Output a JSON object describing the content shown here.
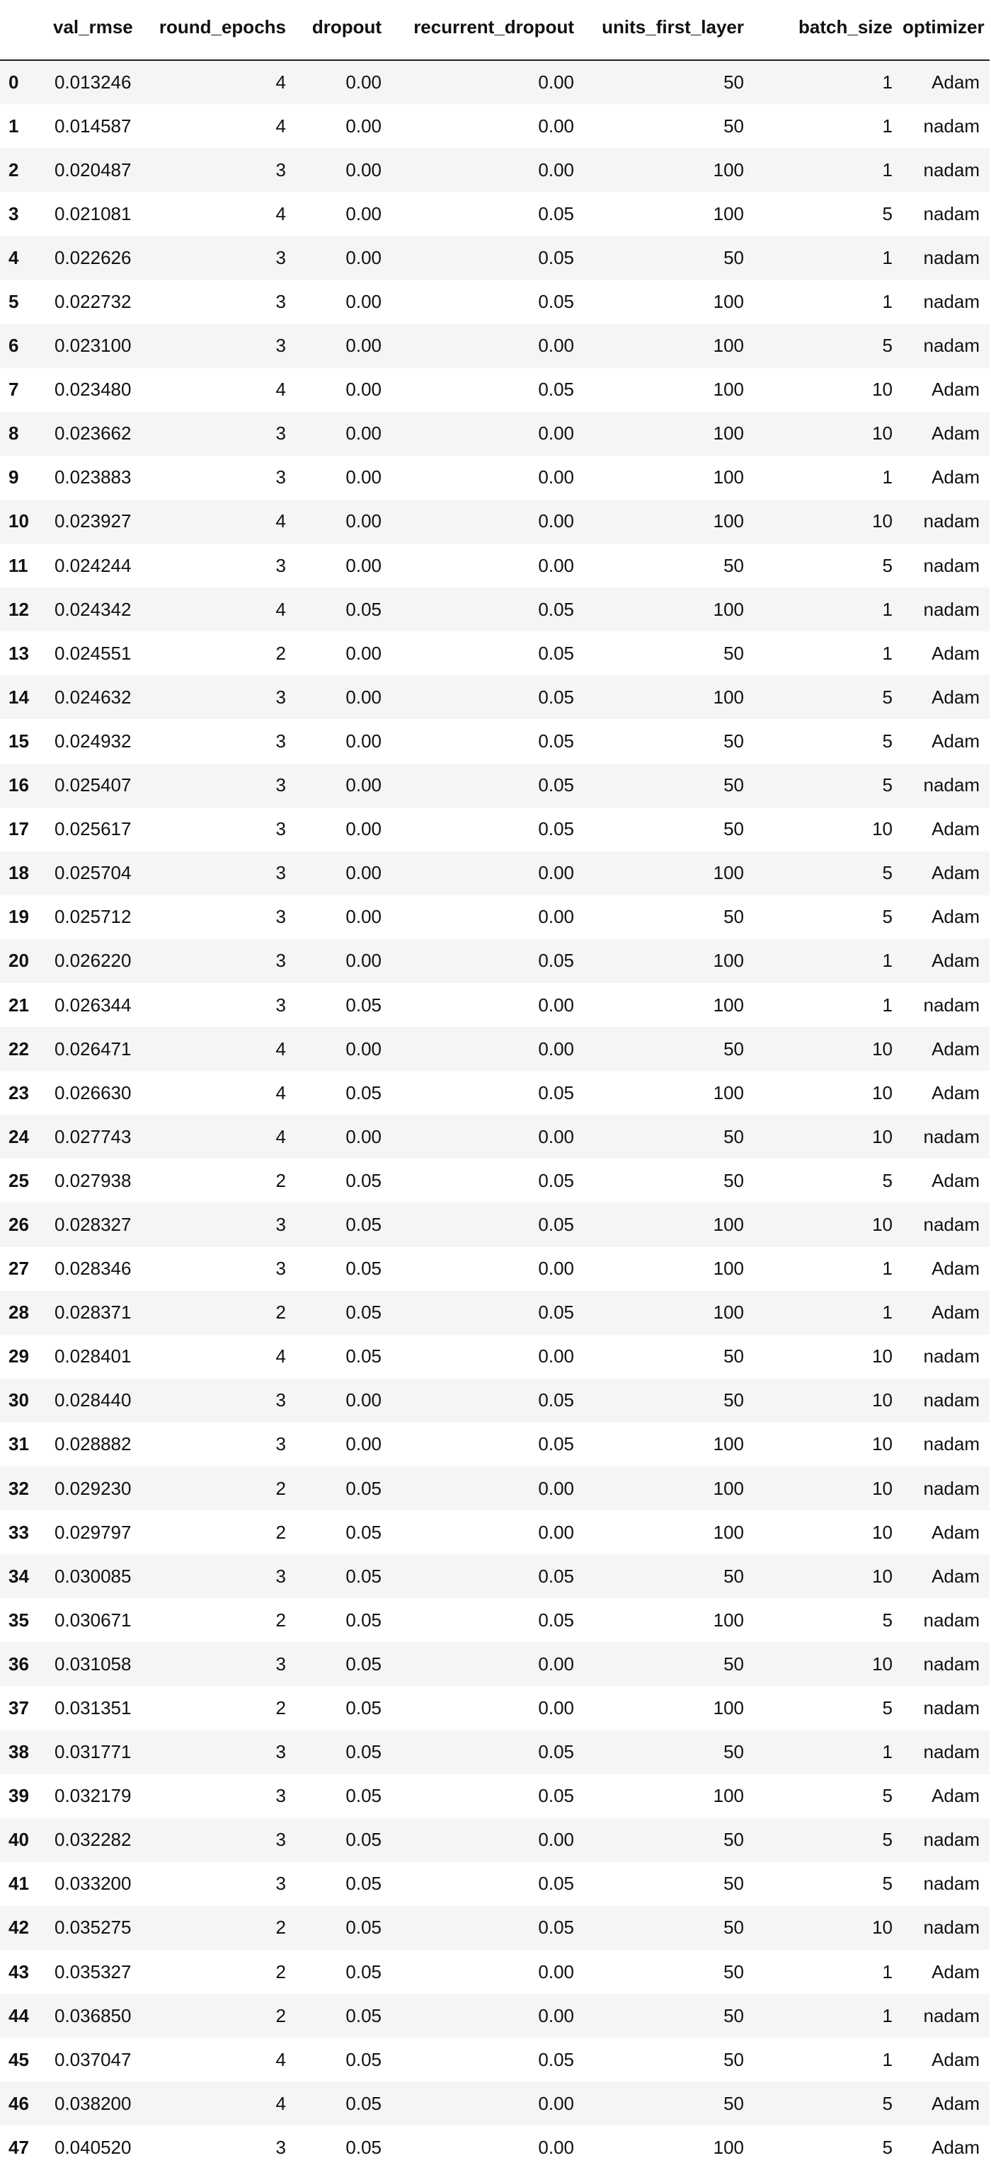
{
  "table": {
    "columns": [
      "",
      "val_rmse",
      "round_epochs",
      "dropout",
      "recurrent_dropout",
      "units_first_layer",
      "batch_size",
      "optimizer"
    ],
    "rows": [
      [
        "0",
        "0.013246",
        "4",
        "0.00",
        "0.00",
        "50",
        "1",
        "Adam"
      ],
      [
        "1",
        "0.014587",
        "4",
        "0.00",
        "0.00",
        "50",
        "1",
        "nadam"
      ],
      [
        "2",
        "0.020487",
        "3",
        "0.00",
        "0.00",
        "100",
        "1",
        "nadam"
      ],
      [
        "3",
        "0.021081",
        "4",
        "0.00",
        "0.05",
        "100",
        "5",
        "nadam"
      ],
      [
        "4",
        "0.022626",
        "3",
        "0.00",
        "0.05",
        "50",
        "1",
        "nadam"
      ],
      [
        "5",
        "0.022732",
        "3",
        "0.00",
        "0.05",
        "100",
        "1",
        "nadam"
      ],
      [
        "6",
        "0.023100",
        "3",
        "0.00",
        "0.00",
        "100",
        "5",
        "nadam"
      ],
      [
        "7",
        "0.023480",
        "4",
        "0.00",
        "0.05",
        "100",
        "10",
        "Adam"
      ],
      [
        "8",
        "0.023662",
        "3",
        "0.00",
        "0.00",
        "100",
        "10",
        "Adam"
      ],
      [
        "9",
        "0.023883",
        "3",
        "0.00",
        "0.00",
        "100",
        "1",
        "Adam"
      ],
      [
        "10",
        "0.023927",
        "4",
        "0.00",
        "0.00",
        "100",
        "10",
        "nadam"
      ],
      [
        "11",
        "0.024244",
        "3",
        "0.00",
        "0.00",
        "50",
        "5",
        "nadam"
      ],
      [
        "12",
        "0.024342",
        "4",
        "0.05",
        "0.05",
        "100",
        "1",
        "nadam"
      ],
      [
        "13",
        "0.024551",
        "2",
        "0.00",
        "0.05",
        "50",
        "1",
        "Adam"
      ],
      [
        "14",
        "0.024632",
        "3",
        "0.00",
        "0.05",
        "100",
        "5",
        "Adam"
      ],
      [
        "15",
        "0.024932",
        "3",
        "0.00",
        "0.05",
        "50",
        "5",
        "Adam"
      ],
      [
        "16",
        "0.025407",
        "3",
        "0.00",
        "0.05",
        "50",
        "5",
        "nadam"
      ],
      [
        "17",
        "0.025617",
        "3",
        "0.00",
        "0.05",
        "50",
        "10",
        "Adam"
      ],
      [
        "18",
        "0.025704",
        "3",
        "0.00",
        "0.00",
        "100",
        "5",
        "Adam"
      ],
      [
        "19",
        "0.025712",
        "3",
        "0.00",
        "0.00",
        "50",
        "5",
        "Adam"
      ],
      [
        "20",
        "0.026220",
        "3",
        "0.00",
        "0.05",
        "100",
        "1",
        "Adam"
      ],
      [
        "21",
        "0.026344",
        "3",
        "0.05",
        "0.00",
        "100",
        "1",
        "nadam"
      ],
      [
        "22",
        "0.026471",
        "4",
        "0.00",
        "0.00",
        "50",
        "10",
        "Adam"
      ],
      [
        "23",
        "0.026630",
        "4",
        "0.05",
        "0.05",
        "100",
        "10",
        "Adam"
      ],
      [
        "24",
        "0.027743",
        "4",
        "0.00",
        "0.00",
        "50",
        "10",
        "nadam"
      ],
      [
        "25",
        "0.027938",
        "2",
        "0.05",
        "0.05",
        "50",
        "5",
        "Adam"
      ],
      [
        "26",
        "0.028327",
        "3",
        "0.05",
        "0.05",
        "100",
        "10",
        "nadam"
      ],
      [
        "27",
        "0.028346",
        "3",
        "0.05",
        "0.00",
        "100",
        "1",
        "Adam"
      ],
      [
        "28",
        "0.028371",
        "2",
        "0.05",
        "0.05",
        "100",
        "1",
        "Adam"
      ],
      [
        "29",
        "0.028401",
        "4",
        "0.05",
        "0.00",
        "50",
        "10",
        "nadam"
      ],
      [
        "30",
        "0.028440",
        "3",
        "0.00",
        "0.05",
        "50",
        "10",
        "nadam"
      ],
      [
        "31",
        "0.028882",
        "3",
        "0.00",
        "0.05",
        "100",
        "10",
        "nadam"
      ],
      [
        "32",
        "0.029230",
        "2",
        "0.05",
        "0.00",
        "100",
        "10",
        "nadam"
      ],
      [
        "33",
        "0.029797",
        "2",
        "0.05",
        "0.00",
        "100",
        "10",
        "Adam"
      ],
      [
        "34",
        "0.030085",
        "3",
        "0.05",
        "0.05",
        "50",
        "10",
        "Adam"
      ],
      [
        "35",
        "0.030671",
        "2",
        "0.05",
        "0.05",
        "100",
        "5",
        "nadam"
      ],
      [
        "36",
        "0.031058",
        "3",
        "0.05",
        "0.00",
        "50",
        "10",
        "nadam"
      ],
      [
        "37",
        "0.031351",
        "2",
        "0.05",
        "0.00",
        "100",
        "5",
        "nadam"
      ],
      [
        "38",
        "0.031771",
        "3",
        "0.05",
        "0.05",
        "50",
        "1",
        "nadam"
      ],
      [
        "39",
        "0.032179",
        "3",
        "0.05",
        "0.05",
        "100",
        "5",
        "Adam"
      ],
      [
        "40",
        "0.032282",
        "3",
        "0.05",
        "0.00",
        "50",
        "5",
        "nadam"
      ],
      [
        "41",
        "0.033200",
        "3",
        "0.05",
        "0.05",
        "50",
        "5",
        "nadam"
      ],
      [
        "42",
        "0.035275",
        "2",
        "0.05",
        "0.05",
        "50",
        "10",
        "nadam"
      ],
      [
        "43",
        "0.035327",
        "2",
        "0.05",
        "0.00",
        "50",
        "1",
        "Adam"
      ],
      [
        "44",
        "0.036850",
        "2",
        "0.05",
        "0.00",
        "50",
        "1",
        "nadam"
      ],
      [
        "45",
        "0.037047",
        "4",
        "0.05",
        "0.05",
        "50",
        "1",
        "Adam"
      ],
      [
        "46",
        "0.038200",
        "4",
        "0.05",
        "0.00",
        "50",
        "5",
        "Adam"
      ],
      [
        "47",
        "0.040520",
        "3",
        "0.05",
        "0.00",
        "100",
        "5",
        "Adam"
      ]
    ]
  }
}
